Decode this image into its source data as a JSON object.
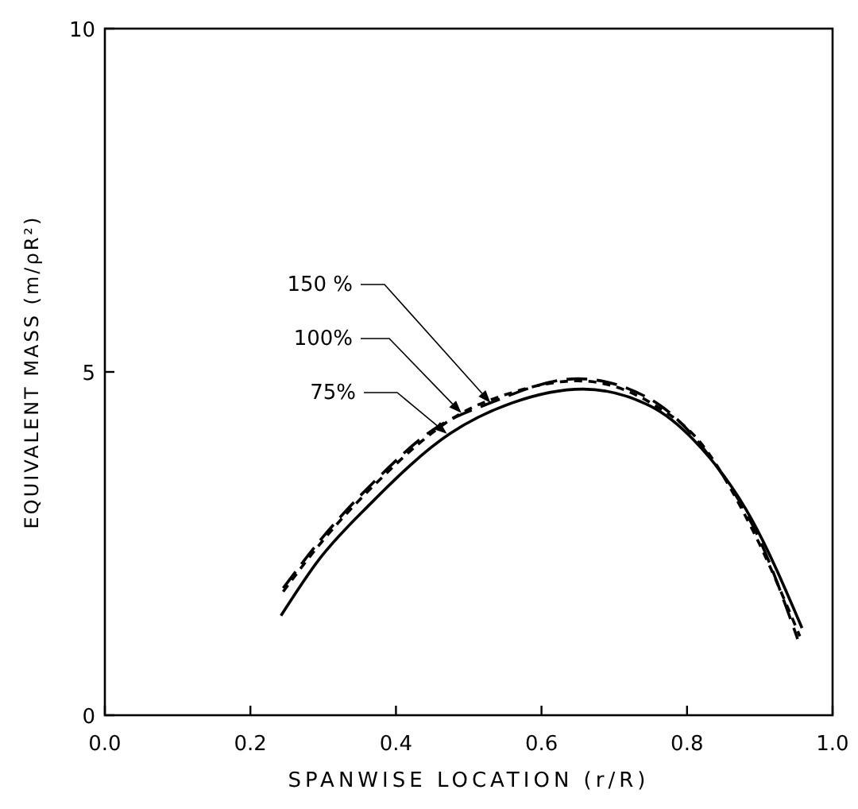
{
  "chart_data": {
    "type": "line",
    "xlabel": "SPANWISE LOCATION (r/R)",
    "ylabel": "EQUIVALENT MASS (m/ρR²)",
    "xlim": [
      0,
      1
    ],
    "ylim": [
      0,
      10
    ],
    "xticks": [
      {
        "value": 0,
        "label": "0.0"
      },
      {
        "value": 0.2,
        "label": "0.2"
      },
      {
        "value": 0.4,
        "label": "0.4"
      },
      {
        "value": 0.6,
        "label": "0.6"
      },
      {
        "value": 0.8,
        "label": "0.8"
      },
      {
        "value": 1,
        "label": "1.0"
      }
    ],
    "yticks": [
      0,
      5,
      10
    ],
    "series": [
      {
        "color": "#000000",
        "line_style": "solid",
        "x": [
          0.242,
          0.293,
          0.365,
          0.474,
          0.56,
          0.657,
          0.75,
          0.809,
          0.889,
          0.958
        ],
        "values": [
          1.45,
          2.25,
          3.08,
          4.1,
          4.55,
          4.75,
          4.5,
          4.01,
          2.85,
          1.27
        ]
      },
      {
        "color": "#000000",
        "line_style": "dashed",
        "x": [
          0.245,
          0.3,
          0.37,
          0.49,
          0.56,
          0.65,
          0.75,
          0.82,
          0.89,
          0.955
        ],
        "values": [
          1.8,
          2.55,
          3.35,
          4.4,
          4.7,
          4.87,
          4.55,
          3.95,
          2.7,
          1.15
        ]
      },
      {
        "color": "#000000",
        "line_style": "dashed",
        "x": [
          0.245,
          0.3,
          0.37,
          0.45,
          0.53,
          0.65,
          0.75,
          0.843,
          0.9,
          0.952
        ],
        "values": [
          1.85,
          2.6,
          3.4,
          4.15,
          4.55,
          4.9,
          4.6,
          3.59,
          2.55,
          1.11
        ]
      }
    ],
    "annotations": [
      {
        "text": "150 %",
        "x": 0.53,
        "y": 4.55
      },
      {
        "text": "100%",
        "x": 0.49,
        "y": 4.4
      },
      {
        "text": "75%",
        "x": 0.47,
        "y": 4.1
      }
    ]
  }
}
